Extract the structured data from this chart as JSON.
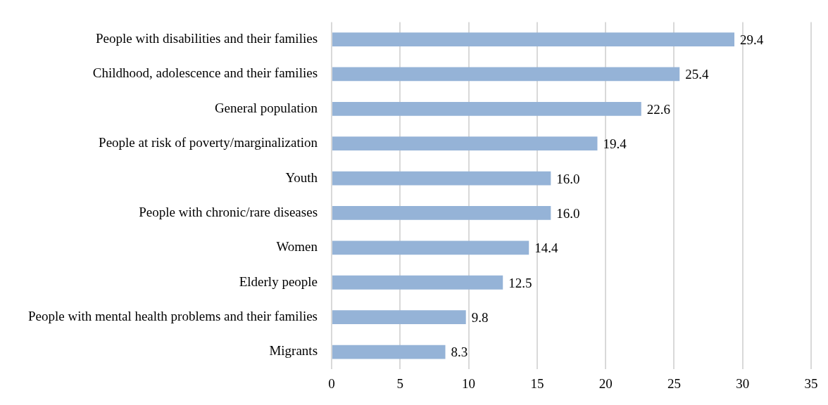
{
  "chart_data": {
    "type": "bar",
    "orientation": "horizontal",
    "categories": [
      "People with disabilities and their families",
      "Childhood, adolescence and their families",
      "General population",
      "People at risk of poverty/marginalization",
      "Youth",
      "People with chronic/rare diseases",
      "Women",
      "Elderly people",
      "People with mental health problems and their families",
      "Migrants"
    ],
    "values": [
      29.4,
      25.4,
      22.6,
      19.4,
      16.0,
      16.0,
      14.4,
      12.5,
      9.8,
      8.3
    ],
    "value_labels": [
      "29.4",
      "25.4",
      "22.6",
      "19.4",
      "16.0",
      "16.0",
      "14.4",
      "12.5",
      "9.8",
      "8.3"
    ],
    "color": "#95b3d7",
    "xlim": [
      0,
      35
    ],
    "xticks": [
      0,
      5,
      10,
      15,
      20,
      25,
      30,
      35
    ],
    "grid": "x",
    "legend": false
  }
}
